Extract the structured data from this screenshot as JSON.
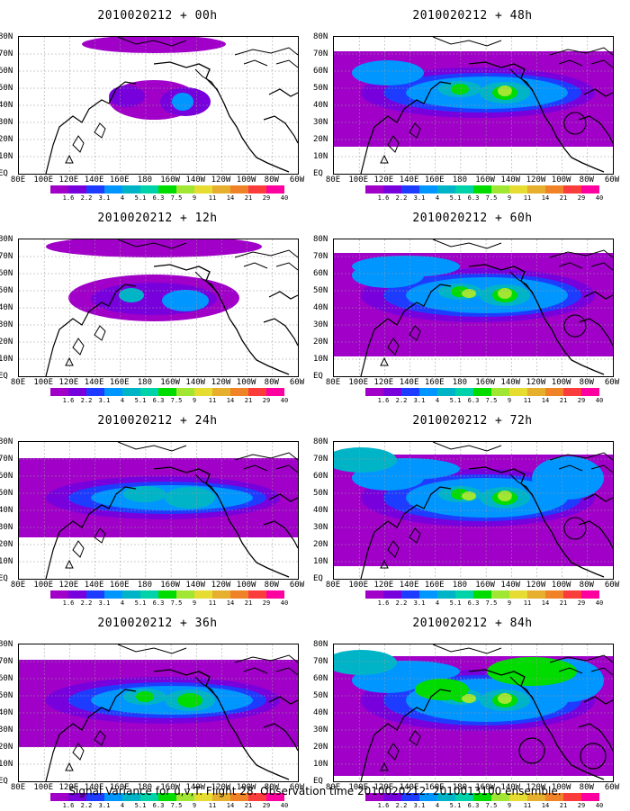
{
  "panels": [
    {
      "title": "2010020212 + 00h",
      "level": 0
    },
    {
      "title": "2010020212 + 48h",
      "level": 4
    },
    {
      "title": "2010020212 + 12h",
      "level": 1
    },
    {
      "title": "2010020212 + 60h",
      "level": 5
    },
    {
      "title": "2010020212 + 24h",
      "level": 2
    },
    {
      "title": "2010020212 + 72h",
      "level": 6
    },
    {
      "title": "2010020212 + 36h",
      "level": 3
    },
    {
      "title": "2010020212 + 84h",
      "level": 7
    }
  ],
  "lat_labels": [
    "80N",
    "70N",
    "60N",
    "50N",
    "40N",
    "30N",
    "20N",
    "10N",
    "EQ"
  ],
  "lon_labels": [
    "80E",
    "100E",
    "120E",
    "140E",
    "160E",
    "180",
    "160W",
    "140W",
    "120W",
    "100W",
    "80W",
    "60W"
  ],
  "colorbar": {
    "labels": [
      "1.6",
      "2.2",
      "3.1",
      "4",
      "5.1",
      "6.3",
      "7.5",
      "9",
      "11",
      "14",
      "21",
      "29",
      "40"
    ],
    "colors": [
      "#a000c8",
      "#7800dc",
      "#1e3cff",
      "#0096ff",
      "#00b4c8",
      "#00d2aa",
      "#00dc00",
      "#a0e632",
      "#e6dc32",
      "#e6af2d",
      "#f08228",
      "#fa3c3c",
      "#ff00a0"
    ]
  },
  "footer": "Signal Variance for u,v,T. Flight 28. Observation time 2010020212. 2010013100 ensemble."
}
